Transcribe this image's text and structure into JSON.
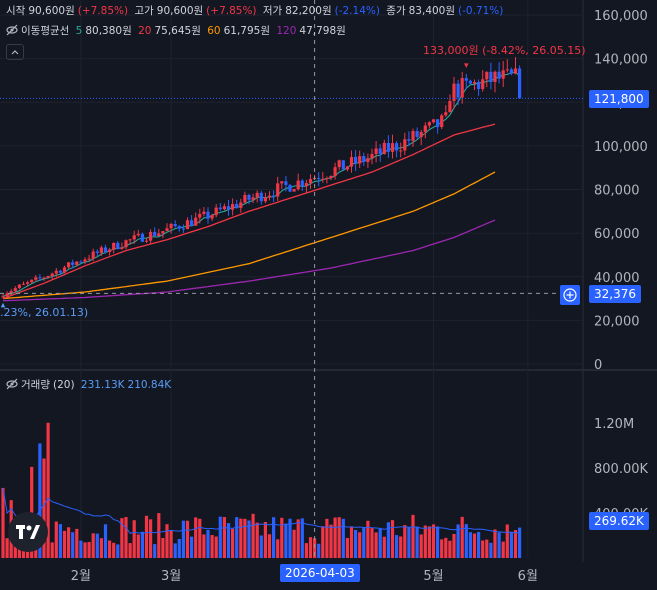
{
  "ohlc_legend": {
    "open_label": "시작",
    "open_value": "90,600원",
    "open_pct": "(+7.85%)",
    "high_label": "고가",
    "high_value": "90,600원",
    "high_pct": "(+7.85%)",
    "low_label": "저가",
    "low_value": "82,200원",
    "low_pct": "(-2.14%)",
    "close_label": "종가",
    "close_value": "83,400원",
    "close_pct": "(-0.71%)"
  },
  "ma_legend": {
    "label": "이동평균선",
    "ma5_period": "5",
    "ma5_value": "80,380원",
    "ma20_period": "20",
    "ma20_value": "75,645원",
    "ma60_period": "60",
    "ma60_value": "61,795원",
    "ma120_period": "120",
    "ma120_value": "47,798원"
  },
  "volume_legend": {
    "label": "거래량",
    "period": "(20)",
    "value1": "231.13K",
    "value2": "210.84K"
  },
  "markers": {
    "high_text": "133,000원 (-8.42%, 26.05.15)",
    "low_text": ".23%, 26.01.13)"
  },
  "price_tags": {
    "last_price": "121,800",
    "crosshair_price": "32,376",
    "last_volume": "269.62K",
    "crosshair_date": "2026-04-03"
  },
  "colors": {
    "up": "#f23645",
    "down": "#2962ff",
    "ma5": "#26a69a",
    "ma20": "#f23645",
    "ma60": "#ff9800",
    "ma120": "#9c27b0",
    "background": "#131722"
  },
  "chart_data": {
    "type": "candlestick",
    "price_axis": {
      "min": 0,
      "max": 160000,
      "ticks": [
        "160,000",
        "140,000",
        "120,000",
        "100,000",
        "80,000",
        "60,000",
        "40,000",
        "20,000",
        "0"
      ],
      "tick_values": [
        160000,
        140000,
        120000,
        100000,
        80000,
        60000,
        40000,
        20000,
        0
      ]
    },
    "volume_axis": {
      "min": 0,
      "max": 1400000,
      "ticks": [
        "1.20M",
        "800.00K",
        "400.00K"
      ],
      "tick_values": [
        1200000,
        800000,
        400000
      ]
    },
    "x_axis": {
      "ticks": [
        "2월",
        "3월",
        "5월",
        "6월"
      ],
      "tick_index": [
        19,
        41,
        105,
        128
      ]
    },
    "crosshair": {
      "index": 76,
      "price": 32376
    },
    "last_price": 121800,
    "high_marker": {
      "index": 113,
      "price": 133000
    },
    "low_marker": {
      "index": 0,
      "price": 30500
    },
    "ma5_last": 80380,
    "ma20_last": 75645,
    "ma60_last": 61795,
    "ma120_last": 47798,
    "ma20_curve": [
      [
        0,
        30000
      ],
      [
        10,
        37000
      ],
      [
        20,
        45000
      ],
      [
        30,
        52000
      ],
      [
        40,
        57000
      ],
      [
        50,
        63000
      ],
      [
        60,
        70000
      ],
      [
        70,
        76000
      ],
      [
        80,
        82000
      ],
      [
        90,
        88000
      ],
      [
        100,
        96000
      ],
      [
        110,
        105000
      ],
      [
        120,
        110000
      ]
    ],
    "ma60_curve": [
      [
        0,
        30000
      ],
      [
        20,
        33000
      ],
      [
        40,
        38000
      ],
      [
        60,
        46000
      ],
      [
        80,
        58000
      ],
      [
        100,
        70000
      ],
      [
        110,
        78000
      ],
      [
        120,
        88000
      ]
    ],
    "ma120_curve": [
      [
        0,
        29000
      ],
      [
        20,
        30500
      ],
      [
        40,
        33000
      ],
      [
        60,
        38000
      ],
      [
        80,
        44000
      ],
      [
        100,
        52000
      ],
      [
        110,
        58000
      ],
      [
        120,
        66000
      ]
    ]
  }
}
